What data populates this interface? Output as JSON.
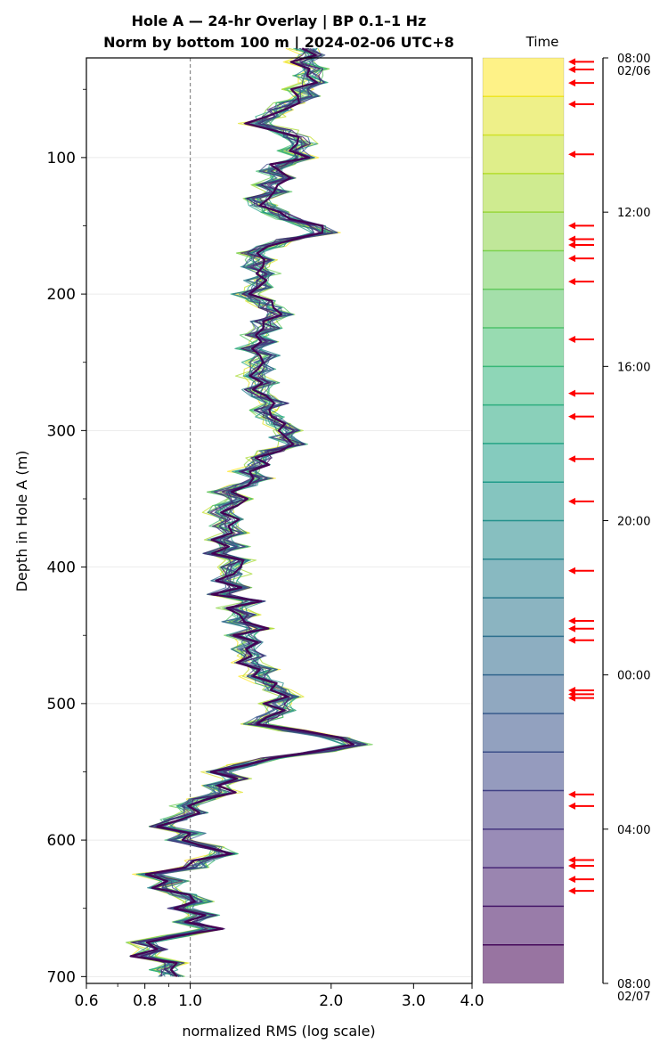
{
  "chart_data": {
    "type": "line",
    "title": "Hole A — 24-hr Overlay  |  BP 0.1–1 Hz",
    "subtitle": "Norm by bottom 100 m  |  2024-02-06 UTC+8",
    "xlabel": "normalized RMS  (log scale)",
    "ylabel": "Depth in Hole A (m)",
    "x_scale": "log",
    "xlim": [
      0.6,
      4.0
    ],
    "ylim": [
      705,
      27
    ],
    "x_ticks": [
      "0.6",
      "0.8",
      "1.0",
      "2.0",
      "3.0",
      "4.0"
    ],
    "x_tick_values": [
      0.6,
      0.8,
      1.0,
      2.0,
      3.0,
      4.0
    ],
    "y_ticks": [
      "100",
      "200",
      "300",
      "400",
      "500",
      "600",
      "700"
    ],
    "y_tick_values": [
      100,
      200,
      300,
      400,
      500,
      600,
      700
    ],
    "reference_line_x": 1.0,
    "grid": "horizontal",
    "colorbar": {
      "label": "Time",
      "colormap": "viridis",
      "n_bands": 24,
      "tick_labels": [
        {
          "text": "08:00",
          "sub": "02/06",
          "hour": 0
        },
        {
          "text": "12:00",
          "sub": "",
          "hour": 4
        },
        {
          "text": "16:00",
          "sub": "",
          "hour": 8
        },
        {
          "text": "20:00",
          "sub": "",
          "hour": 12
        },
        {
          "text": "00:00",
          "sub": "",
          "hour": 16
        },
        {
          "text": "04:00",
          "sub": "",
          "hour": 20
        },
        {
          "text": "08:00",
          "sub": "02/07",
          "hour": 24
        }
      ],
      "arrow_hours": [
        0.1,
        0.3,
        0.65,
        1.2,
        2.5,
        4.35,
        4.7,
        4.85,
        5.2,
        5.8,
        7.3,
        8.7,
        9.3,
        10.4,
        11.5,
        13.3,
        14.6,
        14.8,
        15.1,
        16.4,
        16.5,
        16.6,
        19.1,
        19.4,
        20.8,
        20.95,
        21.3,
        21.6
      ]
    },
    "profile": [
      [
        20,
        1.75
      ],
      [
        25,
        1.83
      ],
      [
        30,
        1.72
      ],
      [
        35,
        1.86
      ],
      [
        40,
        1.79
      ],
      [
        45,
        1.84
      ],
      [
        50,
        1.7
      ],
      [
        55,
        1.78
      ],
      [
        60,
        1.63
      ],
      [
        65,
        1.55
      ],
      [
        70,
        1.48
      ],
      [
        75,
        1.38
      ],
      [
        80,
        1.58
      ],
      [
        85,
        1.68
      ],
      [
        90,
        1.76
      ],
      [
        95,
        1.65
      ],
      [
        100,
        1.74
      ],
      [
        105,
        1.55
      ],
      [
        110,
        1.48
      ],
      [
        115,
        1.58
      ],
      [
        120,
        1.46
      ],
      [
        125,
        1.55
      ],
      [
        130,
        1.4
      ],
      [
        135,
        1.43
      ],
      [
        140,
        1.52
      ],
      [
        145,
        1.63
      ],
      [
        150,
        1.82
      ],
      [
        155,
        1.95
      ],
      [
        160,
        1.62
      ],
      [
        165,
        1.48
      ],
      [
        170,
        1.35
      ],
      [
        175,
        1.42
      ],
      [
        180,
        1.37
      ],
      [
        185,
        1.46
      ],
      [
        190,
        1.38
      ],
      [
        195,
        1.42
      ],
      [
        200,
        1.3
      ],
      [
        205,
        1.42
      ],
      [
        210,
        1.48
      ],
      [
        215,
        1.56
      ],
      [
        220,
        1.42
      ],
      [
        225,
        1.47
      ],
      [
        230,
        1.37
      ],
      [
        235,
        1.44
      ],
      [
        240,
        1.33
      ],
      [
        245,
        1.46
      ],
      [
        250,
        1.38
      ],
      [
        255,
        1.42
      ],
      [
        260,
        1.36
      ],
      [
        265,
        1.45
      ],
      [
        270,
        1.38
      ],
      [
        275,
        1.42
      ],
      [
        280,
        1.54
      ],
      [
        285,
        1.44
      ],
      [
        290,
        1.48
      ],
      [
        295,
        1.55
      ],
      [
        300,
        1.62
      ],
      [
        305,
        1.58
      ],
      [
        310,
        1.66
      ],
      [
        315,
        1.5
      ],
      [
        320,
        1.43
      ],
      [
        325,
        1.4
      ],
      [
        330,
        1.31
      ],
      [
        335,
        1.43
      ],
      [
        340,
        1.3
      ],
      [
        345,
        1.17
      ],
      [
        350,
        1.28
      ],
      [
        355,
        1.2
      ],
      [
        360,
        1.15
      ],
      [
        365,
        1.22
      ],
      [
        370,
        1.18
      ],
      [
        375,
        1.24
      ],
      [
        380,
        1.16
      ],
      [
        385,
        1.25
      ],
      [
        390,
        1.13
      ],
      [
        395,
        1.28
      ],
      [
        400,
        1.22
      ],
      [
        405,
        1.26
      ],
      [
        410,
        1.18
      ],
      [
        415,
        1.27
      ],
      [
        420,
        1.16
      ],
      [
        425,
        1.38
      ],
      [
        430,
        1.23
      ],
      [
        435,
        1.31
      ],
      [
        440,
        1.25
      ],
      [
        445,
        1.42
      ],
      [
        450,
        1.28
      ],
      [
        455,
        1.35
      ],
      [
        460,
        1.3
      ],
      [
        465,
        1.37
      ],
      [
        470,
        1.32
      ],
      [
        475,
        1.45
      ],
      [
        480,
        1.38
      ],
      [
        485,
        1.48
      ],
      [
        490,
        1.52
      ],
      [
        495,
        1.65
      ],
      [
        500,
        1.52
      ],
      [
        505,
        1.58
      ],
      [
        510,
        1.47
      ],
      [
        515,
        1.38
      ],
      [
        520,
        1.68
      ],
      [
        525,
        2.05
      ],
      [
        530,
        2.28
      ],
      [
        535,
        1.9
      ],
      [
        540,
        1.48
      ],
      [
        545,
        1.3
      ],
      [
        550,
        1.15
      ],
      [
        555,
        1.26
      ],
      [
        560,
        1.12
      ],
      [
        565,
        1.2
      ],
      [
        570,
        1.06
      ],
      [
        575,
        0.97
      ],
      [
        580,
        1.03
      ],
      [
        585,
        0.93
      ],
      [
        590,
        0.86
      ],
      [
        595,
        1.02
      ],
      [
        600,
        0.95
      ],
      [
        605,
        1.1
      ],
      [
        610,
        1.18
      ],
      [
        615,
        1.05
      ],
      [
        620,
        1.02
      ],
      [
        625,
        0.82
      ],
      [
        630,
        0.93
      ],
      [
        635,
        0.87
      ],
      [
        640,
        0.97
      ],
      [
        645,
        1.05
      ],
      [
        650,
        0.95
      ],
      [
        655,
        1.08
      ],
      [
        660,
        0.98
      ],
      [
        665,
        1.12
      ],
      [
        670,
        0.93
      ],
      [
        675,
        0.79
      ],
      [
        680,
        0.85
      ],
      [
        685,
        0.78
      ],
      [
        690,
        0.92
      ],
      [
        695,
        0.88
      ],
      [
        700,
        0.91
      ]
    ],
    "n_series": 24
  }
}
